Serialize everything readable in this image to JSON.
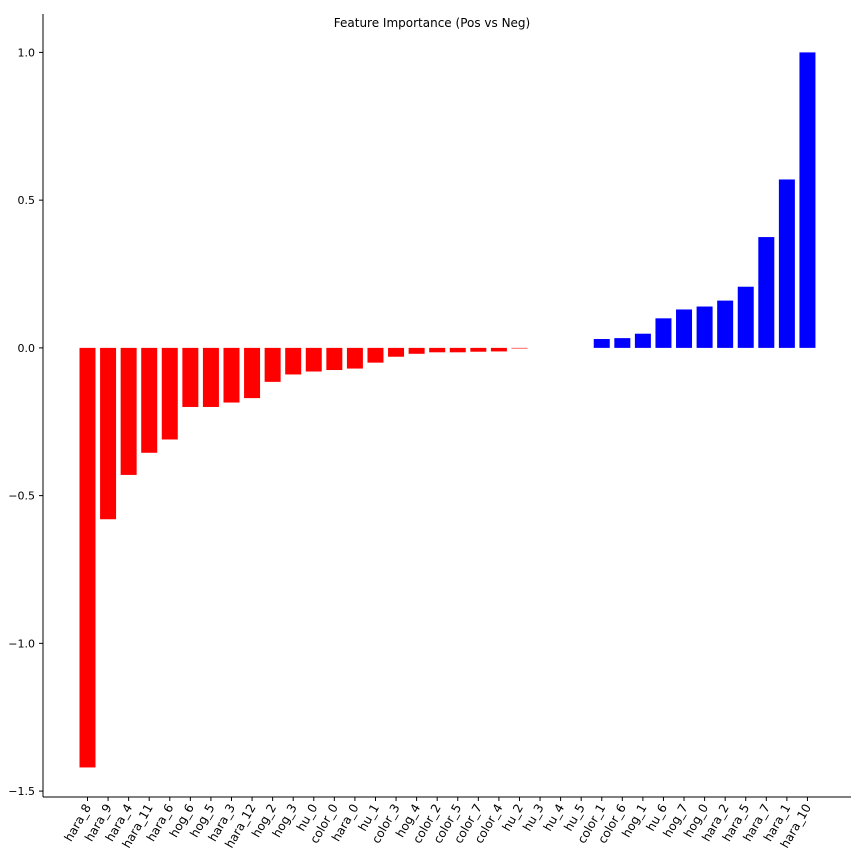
{
  "chart_data": {
    "type": "bar",
    "title": "Feature Importance (Pos vs Neg)",
    "xlabel": "",
    "ylabel": "",
    "ylim": [
      -1.52,
      1.13
    ],
    "yticks": [
      1.0,
      0.5,
      0.0,
      -0.5,
      -1.0,
      -1.5
    ],
    "ytick_labels": [
      "1.0",
      "0.5",
      "0.0",
      "−0.5",
      "−1.0",
      "−1.5"
    ],
    "grid": false,
    "colors": {
      "negative": "#ff0000",
      "positive": "#0000ff"
    },
    "categories": [
      "hara_8",
      "hara_9",
      "hara_4",
      "hara_11",
      "hara_6",
      "hog_6",
      "hog_5",
      "hara_3",
      "hara_12",
      "hog_2",
      "hog_3",
      "hu_0",
      "color_0",
      "hara_0",
      "hu_1",
      "color_3",
      "hog_4",
      "color_2",
      "color_5",
      "color_7",
      "color_4",
      "hu_2",
      "hu_3",
      "hu_4",
      "hu_5",
      "color_1",
      "color_6",
      "hog_1",
      "hu_6",
      "hog_7",
      "hog_0",
      "hara_2",
      "hara_5",
      "hara_7",
      "hara_1",
      "hara_10"
    ],
    "values": [
      -1.42,
      -0.58,
      -0.43,
      -0.355,
      -0.31,
      -0.2,
      -0.2,
      -0.185,
      -0.17,
      -0.115,
      -0.09,
      -0.08,
      -0.075,
      -0.07,
      -0.05,
      -0.03,
      -0.02,
      -0.015,
      -0.015,
      -0.013,
      -0.012,
      -0.002,
      0.0,
      0.0,
      0.0,
      0.03,
      0.033,
      0.048,
      0.1,
      0.13,
      0.14,
      0.16,
      0.207,
      0.375,
      0.57,
      1.0
    ]
  }
}
